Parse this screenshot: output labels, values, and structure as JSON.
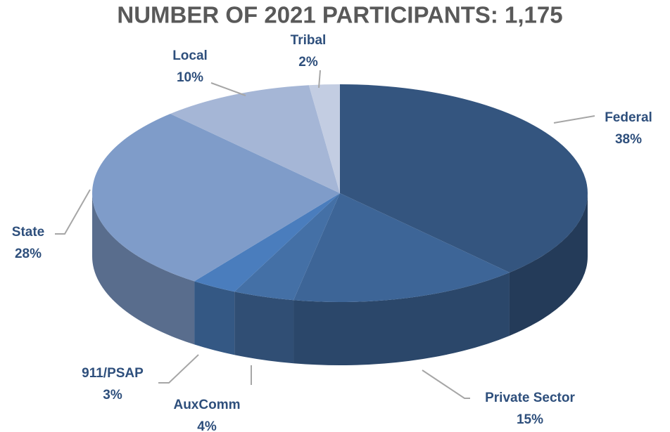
{
  "chart_data": {
    "type": "pie",
    "title": "NUMBER OF 2021 PARTICIPANTS: 1,175",
    "categories": [
      "Federal",
      "Private Sector",
      "AuxComm",
      "911/PSAP",
      "State",
      "Local",
      "Tribal"
    ],
    "values": [
      38,
      15,
      4,
      3,
      28,
      10,
      2
    ],
    "value_labels": [
      "38%",
      "15%",
      "4%",
      "3%",
      "28%",
      "10%",
      "2%"
    ],
    "colors": [
      "#34557f",
      "#3d6597",
      "#4470a6",
      "#4a7dbd",
      "#7f9cc9",
      "#a5b6d6",
      "#c3cde2"
    ]
  }
}
